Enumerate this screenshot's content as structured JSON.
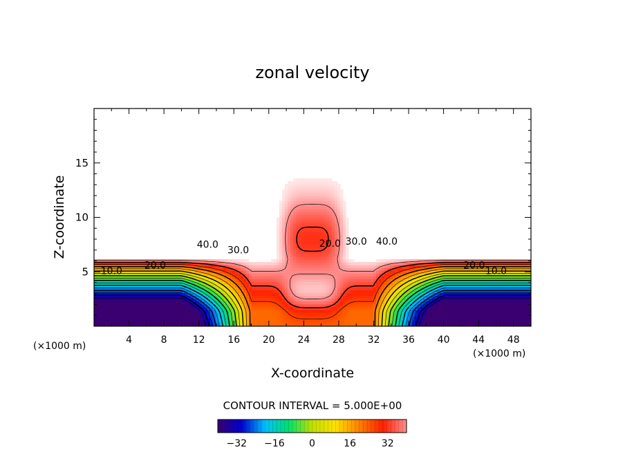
{
  "chart_data": {
    "type": "heatmap",
    "title": "zonal velocity",
    "xlabel": "X-coordinate",
    "ylabel": "Z-coordinate",
    "x_unit_label": "(×1000 m)",
    "xlim": [
      0,
      50
    ],
    "ylim": [
      0,
      20
    ],
    "xticks": [
      4,
      8,
      12,
      16,
      20,
      24,
      28,
      32,
      36,
      40,
      44,
      48
    ],
    "yticks": [
      5,
      10,
      15
    ],
    "contour_interval_label": "CONTOUR INTERVAL = 5.000E+00",
    "contour_labels": [
      {
        "text": "40.0",
        "x": 13,
        "z": 7.2
      },
      {
        "text": "30.0",
        "x": 16.5,
        "z": 6.7
      },
      {
        "text": "20.0",
        "x": 7,
        "z": 5.3
      },
      {
        "text": "10.0",
        "x": 2,
        "z": 4.8
      },
      {
        "text": "20.0",
        "x": 27,
        "z": 7.3
      },
      {
        "text": "30.0",
        "x": 30,
        "z": 7.5
      },
      {
        "text": "40.0",
        "x": 33.5,
        "z": 7.5
      },
      {
        "text": "20.0",
        "x": 43.5,
        "z": 5.3
      },
      {
        "text": "10.0",
        "x": 46,
        "z": 4.8
      }
    ],
    "colorbar": {
      "min": -40,
      "max": 40,
      "ticks": [
        -32,
        -16,
        0,
        16,
        32
      ],
      "tick_labels": [
        "−32",
        "−16",
        "0",
        "16",
        "32"
      ],
      "colors": [
        "#3a0070",
        "#0000cc",
        "#00c0ff",
        "#00e070",
        "#c0e000",
        "#ffe000",
        "#ff8000",
        "#ff2000",
        "#ff9090"
      ]
    },
    "field_values": {
      "upper_background": 50,
      "jet_core_min": 15,
      "lower_min": -40
    }
  }
}
